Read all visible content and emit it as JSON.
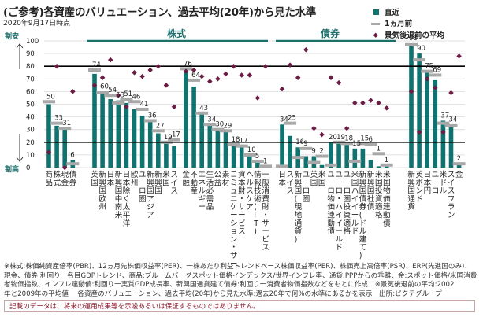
{
  "header": {
    "title": "(ご参考)各資産のバリュエーション、過去平均(20年)から見た水準",
    "as_of": "2020年9月17日時点"
  },
  "side_labels": {
    "cheap": "割安",
    "expensive": "割高"
  },
  "legend": {
    "current": "直近",
    "month_ago": "1ヵ月前",
    "pre_recession_avg": "景気後退前の平均"
  },
  "colors": {
    "current_bar": "#0f7470",
    "month_ago_marker": "#a8a8a8",
    "pre_recession_marker": "#6b1c45",
    "section_line": "#1d6f6b",
    "threshold_line": "#000000",
    "gridline": "#d8d8d8"
  },
  "sections": [
    {
      "label": "株式"
    },
    {
      "label": "債券"
    }
  ],
  "chart_data": {
    "type": "bar",
    "title": "(ご参考)各資産のバリュエーション、過去平均(20年)から見た水準",
    "subtitle": "2020年9月17日時点",
    "xlabel": "",
    "ylabel": "",
    "ylim": [
      0,
      100
    ],
    "yticks": [
      0,
      10,
      20,
      30,
      40,
      50,
      60,
      70,
      80,
      90,
      100
    ],
    "reference_lines": [
      80,
      20
    ],
    "grid": true,
    "legend_position": "top-right",
    "categories": [
      "商品",
      "株式",
      "現金",
      "債券",
      "英国",
      "新興国欧州",
      "日本",
      "新興国中南米",
      "日本除く太平洋",
      "欧州",
      "ユーロ圏",
      "新興国アジア",
      "新興国",
      "米国",
      "スイス",
      "金融",
      "不動産",
      "エネルギー",
      "生活必需品",
      "公益",
      "素材",
      "コミュニケーション・サービス",
      "資本財・サービス",
      "ヘルスケア",
      "情報技術(IT)",
      "一般消費財・サービス",
      "日本",
      "スイス",
      "新興国(現地通貨)",
      "ユーロ圏",
      "英国",
      "米国",
      "ユーロ物価連動債",
      "ユーロ・ハイイールド",
      "ユーロ圏投資適格",
      "米国ハイイールド",
      "新興国債券(ドル建て)",
      "新興国社債",
      "米国投資適格",
      "米国物価連動債",
      "新興国通貨",
      "英ポンド",
      "日本円",
      "ユーロ",
      "米ドル",
      "スイスフラン",
      "金"
    ],
    "groups": [
      {
        "name": "資産",
        "start": 0,
        "end": 3
      },
      {
        "name": "株式(国・地域)",
        "start": 4,
        "end": 14
      },
      {
        "name": "株式(セクター)",
        "start": 15,
        "end": 25
      },
      {
        "name": "債券(国)",
        "start": 26,
        "end": 31
      },
      {
        "name": "債券(種別)",
        "start": 32,
        "end": 39
      },
      {
        "name": "通貨・金",
        "start": 40,
        "end": 46
      }
    ],
    "series": [
      {
        "name": "直近",
        "kind": "bar",
        "values": [
          50,
          33,
          31,
          6,
          74,
          60,
          54,
          53,
          51,
          46,
          41,
          36,
          27,
          19,
          17,
          76,
          64,
          43,
          34,
          30,
          29,
          18,
          17,
          10,
          5,
          1,
          34,
          25,
          16,
          9,
          9,
          2,
          20,
          19,
          18,
          15,
          15,
          6,
          1,
          1,
          98,
          90,
          75,
          69,
          37,
          34,
          2
        ],
        "labels": [
          "50",
          "33",
          "31",
          "6",
          "74",
          "60",
          "54",
          "53",
          "51",
          "46",
          "41",
          "36",
          "27",
          "19",
          "17",
          "76",
          "64",
          "43",
          "34",
          "30",
          "29",
          "18",
          "17",
          "10",
          "5",
          "1",
          "34",
          "25",
          "16",
          "9",
          "9",
          "2",
          "20",
          "19",
          "18",
          "15",
          "15",
          "6",
          "1",
          "1",
          "98",
          "90",
          "75",
          "69",
          "37",
          "34",
          "2"
        ]
      },
      {
        "name": "1ヵ月前",
        "kind": "dash",
        "values": [
          52,
          35,
          31,
          3,
          77,
          59,
          57,
          51,
          54,
          52,
          46,
          37,
          29,
          20,
          22,
          78,
          69,
          43,
          34,
          30,
          29,
          18,
          17,
          10,
          5,
          1,
          1,
          35,
          8,
          15,
          4,
          9,
          2,
          20,
          19,
          5,
          19,
          18,
          11,
          2,
          97,
          85,
          76,
          73,
          35,
          33,
          3
        ]
      },
      {
        "name": "景気後退前の平均",
        "kind": "diamond",
        "values": [
          12,
          80,
          0,
          60,
          65,
          71,
          85,
          57,
          48,
          75,
          72,
          77,
          80,
          65,
          48,
          76,
          77,
          72,
          68,
          70,
          74,
          80,
          73,
          73,
          55,
          80,
          62,
          81,
          71,
          93,
          31,
          26,
          71,
          67,
          31,
          51,
          51,
          53,
          51,
          47,
          60,
          28,
          70,
          63,
          28,
          59,
          88
        ]
      }
    ]
  },
  "footnotes": [
    "※株式:株価純資産倍率(PBR)、12ヵ月先株価収益率(PER)、一株あたり利益トレンドベース株価収益率(PER)、株価売上高倍率(PSR)、ERP(先進国のみ)、",
    "現金、債券:利回り一名目GDPトレンド、商品:ブルームバーグスポット価格インデックス/世界インフレ率、通貨:PPPからの乖離、金:スポット価格/米国消費",
    "者物価指数、インフレ連動債:利回り一実質GDP成長率、新興国通貨建て債券:利回り一消費者物価指数などをもとに作成　※景気後退前の平均:2002",
    "年と2009年の平均値　 各資産のバリュエーション、過去平均(20年)から見た水準:過去20年で何%の水準にあるかを表示　出所:ピクテグループ"
  ],
  "disclaimer": "記載のデータは、将来の運用成果等を示唆あるいは保証するものではありません。"
}
